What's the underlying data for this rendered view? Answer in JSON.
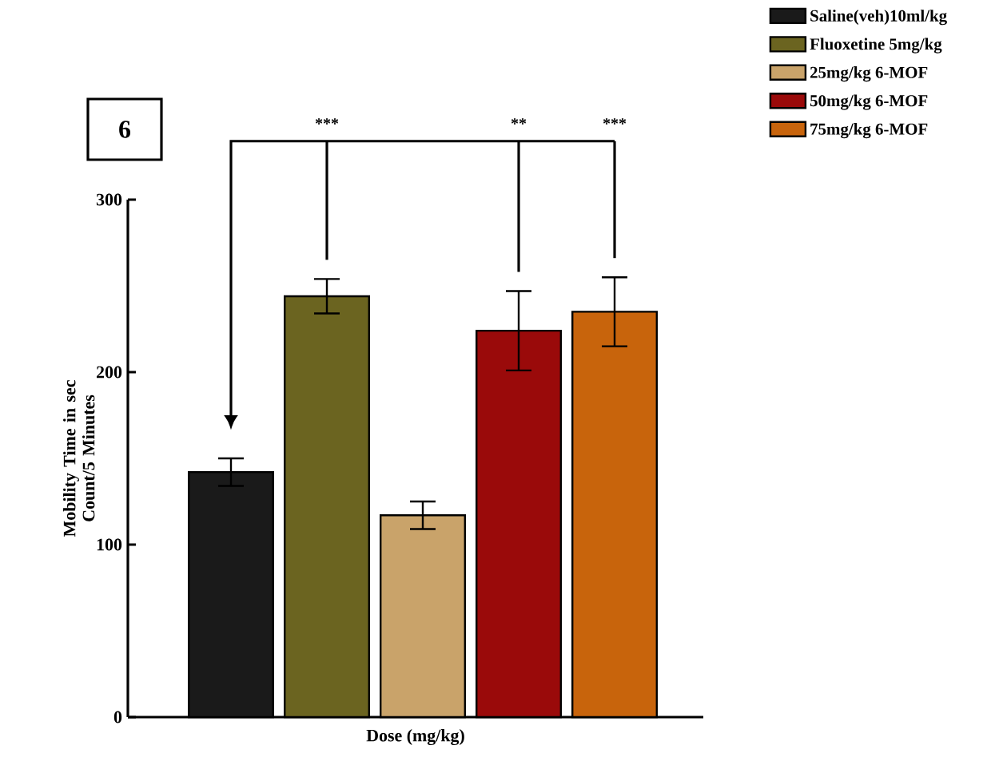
{
  "chart_data": {
    "type": "bar",
    "xlabel": "Dose (mg/kg)",
    "ylabel": "Mobility Time in sec Count/5 Minutes",
    "categories": [
      null,
      null,
      null,
      null,
      null
    ],
    "series": [
      {
        "name": "Saline(veh)10ml/kg",
        "color": "#1a1a1a",
        "values": [
          142,
          null,
          null,
          null,
          null
        ],
        "errors": [
          8,
          null,
          null,
          null,
          null
        ]
      },
      {
        "name": "Fluoxetine 5mg/kg",
        "color": "#6b6420",
        "values": [
          null,
          244,
          null,
          null,
          null
        ],
        "errors": [
          null,
          10,
          null,
          null,
          null
        ]
      },
      {
        "name": "25mg/kg 6-MOF",
        "color": "#c9a36a",
        "values": [
          null,
          null,
          117,
          null,
          null
        ],
        "errors": [
          null,
          null,
          8,
          null,
          null
        ]
      },
      {
        "name": "50mg/kg 6-MOF",
        "color": "#9a0a0a",
        "values": [
          null,
          null,
          null,
          224,
          null
        ],
        "errors": [
          null,
          null,
          null,
          23,
          null
        ]
      },
      {
        "name": "75mg/kg 6-MOF",
        "color": "#c8640c",
        "values": [
          null,
          null,
          null,
          null,
          235
        ],
        "errors": [
          null,
          null,
          null,
          null,
          20
        ]
      }
    ],
    "ylim": [
      0,
      300
    ],
    "yticks": [
      0,
      100,
      200,
      300
    ],
    "tick_labels": "y",
    "legend": "top right",
    "annotations": [
      "6",
      "***",
      "**",
      "***"
    ]
  }
}
